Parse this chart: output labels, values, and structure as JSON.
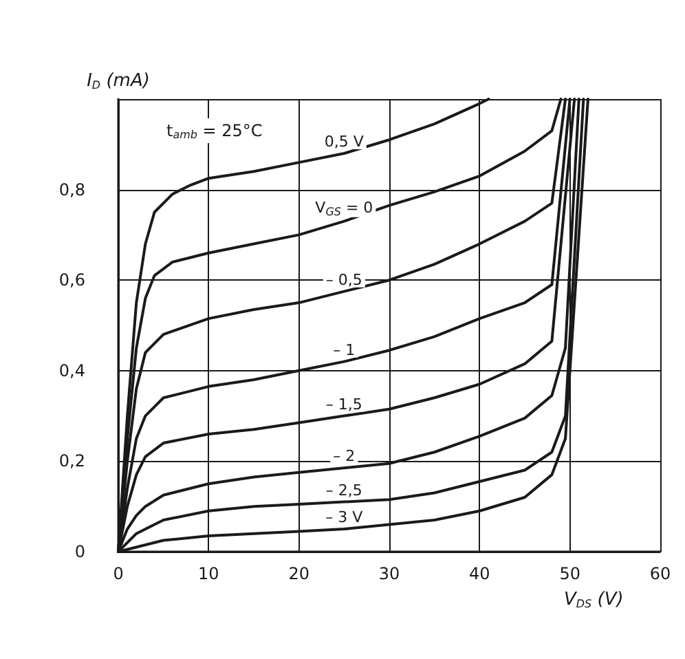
{
  "chart_data": {
    "type": "line",
    "xlabel": "V$_{DS}$ (V)",
    "ylabel": "I$_{D}$ (mA)",
    "annotations": [
      "t$_{amb}$ = 25°C"
    ],
    "xlim": [
      0,
      60
    ],
    "xticks": [
      0,
      10,
      20,
      30,
      40,
      50,
      60
    ],
    "ylim": [
      0,
      1
    ],
    "yticks": [
      0,
      {
        "value": 0.2,
        "label": "0,2"
      },
      {
        "value": 0.4,
        "label": "0,4"
      },
      {
        "value": 0.6,
        "label": "0,6"
      },
      {
        "value": 0.8,
        "label": "0,8"
      },
      {
        "value": 1,
        "label": null
      }
    ],
    "grid": true,
    "legend": false,
    "marker": "none",
    "line_style": "solid",
    "series": [
      {
        "name": "0,5 V",
        "color": "#1a1a1a",
        "x": [
          0,
          1,
          2,
          3,
          4,
          6,
          8,
          10,
          15,
          20,
          25,
          30,
          35,
          40,
          41
        ],
        "values": [
          0,
          0.3,
          0.55,
          0.68,
          0.75,
          0.79,
          0.81,
          0.825,
          0.84,
          0.86,
          0.88,
          0.91,
          0.945,
          0.99,
          1.0
        ]
      },
      {
        "name": "V$_{GS}$ = 0",
        "color": "#1a1a1a",
        "x": [
          0,
          1,
          2,
          3,
          4,
          6,
          10,
          15,
          20,
          25,
          30,
          35,
          40,
          45,
          48,
          49
        ],
        "values": [
          0,
          0.25,
          0.45,
          0.56,
          0.61,
          0.64,
          0.66,
          0.68,
          0.7,
          0.73,
          0.765,
          0.795,
          0.83,
          0.885,
          0.93,
          1.0
        ]
      },
      {
        "name": "– 0,5",
        "color": "#1a1a1a",
        "x": [
          0,
          1,
          2,
          3,
          5,
          10,
          15,
          20,
          25,
          30,
          35,
          40,
          45,
          48,
          49.5
        ],
        "values": [
          0,
          0.2,
          0.36,
          0.44,
          0.48,
          0.515,
          0.535,
          0.55,
          0.575,
          0.6,
          0.635,
          0.68,
          0.73,
          0.77,
          1.0
        ]
      },
      {
        "name": "– 1",
        "color": "#1a1a1a",
        "x": [
          0,
          1,
          2,
          3,
          5,
          10,
          15,
          20,
          25,
          30,
          35,
          40,
          45,
          48,
          50
        ],
        "values": [
          0,
          0.14,
          0.25,
          0.3,
          0.34,
          0.365,
          0.38,
          0.4,
          0.42,
          0.445,
          0.475,
          0.515,
          0.55,
          0.59,
          1.0
        ]
      },
      {
        "name": "– 1,5",
        "color": "#1a1a1a",
        "x": [
          0,
          1,
          2,
          3,
          5,
          10,
          15,
          20,
          25,
          30,
          35,
          40,
          45,
          48,
          50.5
        ],
        "values": [
          0,
          0.1,
          0.17,
          0.21,
          0.24,
          0.26,
          0.27,
          0.285,
          0.3,
          0.315,
          0.34,
          0.37,
          0.415,
          0.465,
          1.0
        ]
      },
      {
        "name": "– 2",
        "color": "#1a1a1a",
        "x": [
          0,
          1,
          2,
          3,
          5,
          10,
          15,
          20,
          25,
          30,
          35,
          40,
          45,
          48,
          49.5,
          51
        ],
        "values": [
          0,
          0.05,
          0.08,
          0.1,
          0.125,
          0.15,
          0.165,
          0.175,
          0.185,
          0.195,
          0.22,
          0.255,
          0.295,
          0.345,
          0.45,
          1.0
        ]
      },
      {
        "name": "– 2,5",
        "color": "#1a1a1a",
        "x": [
          0,
          2,
          5,
          10,
          15,
          20,
          25,
          30,
          35,
          40,
          45,
          48,
          49.5,
          51.5
        ],
        "values": [
          0,
          0.04,
          0.07,
          0.09,
          0.1,
          0.105,
          0.11,
          0.115,
          0.13,
          0.155,
          0.18,
          0.22,
          0.3,
          1.0
        ]
      },
      {
        "name": "– 3 V",
        "color": "#1a1a1a",
        "x": [
          0,
          5,
          10,
          20,
          25,
          30,
          35,
          40,
          45,
          48,
          49.5,
          52
        ],
        "values": [
          0,
          0.025,
          0.035,
          0.045,
          0.05,
          0.06,
          0.07,
          0.09,
          0.12,
          0.17,
          0.25,
          1.0
        ]
      }
    ]
  }
}
